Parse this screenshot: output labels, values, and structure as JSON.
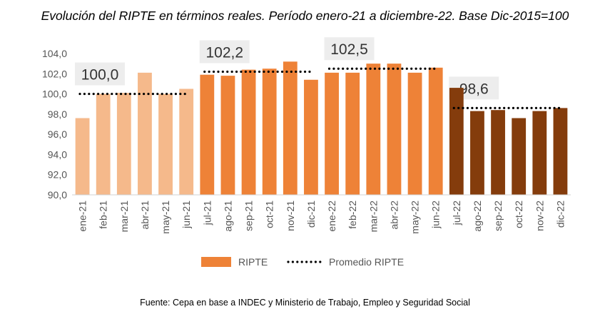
{
  "title": "Evolución del RIPTE en términos reales. Período enero-21 a diciembre-22. Base Dic-2015=100",
  "source": "Fuente: Cepa en base a INDEC y Ministerio de Trabajo, Empleo y Seguridad Social",
  "chart_data": {
    "type": "bar",
    "categories": [
      "ene-21",
      "feb-21",
      "mar-21",
      "abr-21",
      "may-21",
      "jun-21",
      "jul-21",
      "ago-21",
      "sep-21",
      "oct-21",
      "nov-21",
      "dic-21",
      "ene-22",
      "feb-22",
      "mar-22",
      "abr-22",
      "may-22",
      "jun-22",
      "jul-22",
      "ago-22",
      "sep-22",
      "oct-22",
      "nov-22",
      "dic-22"
    ],
    "series": [
      {
        "name": "RIPTE",
        "values": [
          97.6,
          100.0,
          100.1,
          102.1,
          100.0,
          100.5,
          101.9,
          101.8,
          102.4,
          102.5,
          103.2,
          101.4,
          102.1,
          102.1,
          103.0,
          103.0,
          102.1,
          102.6,
          100.6,
          98.3,
          98.4,
          97.6,
          98.3,
          98.6
        ]
      },
      {
        "name": "Promedio RIPTE",
        "values": [
          100.0,
          100.0,
          100.0,
          100.0,
          100.0,
          100.0,
          102.2,
          102.2,
          102.2,
          102.2,
          102.2,
          102.2,
          102.5,
          102.5,
          102.5,
          102.5,
          102.5,
          102.5,
          98.6,
          98.6,
          98.6,
          98.6,
          98.6,
          98.6
        ]
      }
    ],
    "bar_colors": [
      "#f5b98b",
      "#f5b98b",
      "#f5b98b",
      "#f5b98b",
      "#f5b98b",
      "#f5b98b",
      "#ee8237",
      "#ee8237",
      "#ee8237",
      "#ee8237",
      "#ee8237",
      "#ee8237",
      "#ee8237",
      "#ee8237",
      "#ee8237",
      "#ee8237",
      "#ee8237",
      "#ee8237",
      "#843c0c",
      "#843c0c",
      "#843c0c",
      "#843c0c",
      "#843c0c",
      "#843c0c"
    ],
    "average_labels": [
      "100,0",
      "102,2",
      "102,5",
      "98,6"
    ],
    "y_ticks": [
      "90,0",
      "92,0",
      "94,0",
      "96,0",
      "98,0",
      "100,0",
      "102,0",
      "104,0"
    ],
    "ylim": [
      90,
      104
    ],
    "legend": {
      "position": "bottom",
      "bar_label": "RIPTE",
      "line_label": "Promedio RIPTE",
      "bar_color": "#ee8237"
    },
    "grid": false,
    "xlabel": "",
    "ylabel": ""
  }
}
